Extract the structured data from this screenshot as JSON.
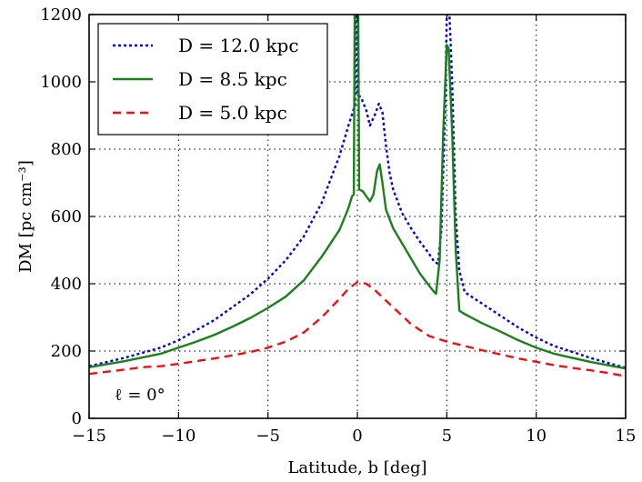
{
  "chart_data": {
    "type": "line",
    "title": "",
    "xlabel": "Latitude, b [deg]",
    "ylabel": "DM [pc cm⁻³]",
    "xlim": [
      -15,
      15
    ],
    "ylim": [
      0,
      1200
    ],
    "xticks": [
      -15,
      -10,
      -5,
      0,
      5,
      10,
      15
    ],
    "yticks": [
      0,
      200,
      400,
      600,
      800,
      1000,
      1200
    ],
    "xtick_labels": [
      "−15",
      "−10",
      "−5",
      "0",
      "5",
      "10",
      "15"
    ],
    "ytick_labels": [
      "0",
      "200",
      "400",
      "600",
      "800",
      "1000",
      "1200"
    ],
    "grid": true,
    "legend_position": "top-left",
    "annotation": "ℓ = 0°",
    "series": [
      {
        "name": "D = 12.0 kpc",
        "color": "#0000dd",
        "style": "dotted",
        "points": [
          [
            -15,
            155
          ],
          [
            -13,
            180
          ],
          [
            -11,
            210
          ],
          [
            -10,
            232
          ],
          [
            -9,
            262
          ],
          [
            -8,
            292
          ],
          [
            -7,
            330
          ],
          [
            -6,
            368
          ],
          [
            -5,
            415
          ],
          [
            -4,
            470
          ],
          [
            -3,
            540
          ],
          [
            -2,
            640
          ],
          [
            -1,
            780
          ],
          [
            -0.5,
            870
          ],
          [
            -0.2,
            920
          ],
          [
            -0.12,
            930
          ],
          [
            -0.1,
            1200
          ],
          [
            -0.02,
            1200
          ],
          [
            0,
            960
          ],
          [
            0.2,
            955
          ],
          [
            0.5,
            915
          ],
          [
            0.7,
            870
          ],
          [
            1.0,
            905
          ],
          [
            1.2,
            935
          ],
          [
            1.4,
            910
          ],
          [
            1.6,
            810
          ],
          [
            1.8,
            730
          ],
          [
            2.0,
            680
          ],
          [
            2.5,
            610
          ],
          [
            3.0,
            565
          ],
          [
            3.5,
            525
          ],
          [
            4.0,
            490
          ],
          [
            4.3,
            465
          ],
          [
            4.5,
            460
          ],
          [
            4.7,
            560
          ],
          [
            4.9,
            900
          ],
          [
            5.0,
            1200
          ],
          [
            5.15,
            1200
          ],
          [
            5.3,
            1000
          ],
          [
            5.5,
            600
          ],
          [
            5.7,
            440
          ],
          [
            6.0,
            375
          ],
          [
            7,
            340
          ],
          [
            8,
            305
          ],
          [
            9,
            270
          ],
          [
            10,
            240
          ],
          [
            11,
            215
          ],
          [
            12,
            198
          ],
          [
            13,
            180
          ],
          [
            14,
            165
          ],
          [
            15,
            150
          ]
        ]
      },
      {
        "name": "D = 8.5 kpc",
        "color": "#1a801a",
        "style": "solid",
        "points": [
          [
            -15,
            152
          ],
          [
            -13,
            170
          ],
          [
            -11,
            192
          ],
          [
            -10,
            210
          ],
          [
            -9,
            228
          ],
          [
            -8,
            248
          ],
          [
            -7,
            272
          ],
          [
            -6,
            298
          ],
          [
            -5,
            328
          ],
          [
            -4,
            362
          ],
          [
            -3,
            410
          ],
          [
            -2,
            480
          ],
          [
            -1,
            560
          ],
          [
            -0.5,
            625
          ],
          [
            -0.3,
            660
          ],
          [
            -0.2,
            665
          ],
          [
            -0.15,
            1200
          ],
          [
            0.05,
            1200
          ],
          [
            0.1,
            680
          ],
          [
            0.3,
            675
          ],
          [
            0.5,
            660
          ],
          [
            0.7,
            645
          ],
          [
            0.9,
            665
          ],
          [
            1.1,
            735
          ],
          [
            1.25,
            755
          ],
          [
            1.4,
            700
          ],
          [
            1.6,
            620
          ],
          [
            2.0,
            565
          ],
          [
            2.5,
            520
          ],
          [
            3.0,
            475
          ],
          [
            3.5,
            430
          ],
          [
            4.0,
            395
          ],
          [
            4.3,
            375
          ],
          [
            4.4,
            370
          ],
          [
            4.6,
            470
          ],
          [
            4.8,
            850
          ],
          [
            5.0,
            1110
          ],
          [
            5.1,
            1100
          ],
          [
            5.3,
            850
          ],
          [
            5.5,
            500
          ],
          [
            5.7,
            320
          ],
          [
            6,
            310
          ],
          [
            7,
            282
          ],
          [
            8,
            258
          ],
          [
            9,
            232
          ],
          [
            10,
            210
          ],
          [
            11,
            192
          ],
          [
            12,
            180
          ],
          [
            13,
            168
          ],
          [
            14,
            158
          ],
          [
            15,
            148
          ]
        ]
      },
      {
        "name": "D = 5.0 kpc",
        "color": "#ee1111",
        "style": "dashed",
        "points": [
          [
            -15,
            132
          ],
          [
            -13,
            145
          ],
          [
            -12,
            152
          ],
          [
            -11,
            155
          ],
          [
            -10,
            162
          ],
          [
            -9,
            170
          ],
          [
            -8,
            178
          ],
          [
            -7,
            187
          ],
          [
            -6,
            197
          ],
          [
            -5,
            210
          ],
          [
            -4,
            228
          ],
          [
            -3,
            255
          ],
          [
            -2,
            300
          ],
          [
            -1,
            355
          ],
          [
            -0.5,
            385
          ],
          [
            0,
            405
          ],
          [
            0.5,
            400
          ],
          [
            1,
            380
          ],
          [
            2,
            330
          ],
          [
            3,
            280
          ],
          [
            4,
            245
          ],
          [
            5,
            228
          ],
          [
            6,
            215
          ],
          [
            7,
            202
          ],
          [
            8,
            190
          ],
          [
            9,
            178
          ],
          [
            10,
            168
          ],
          [
            11,
            158
          ],
          [
            12,
            150
          ],
          [
            13,
            143
          ],
          [
            14,
            135
          ],
          [
            15,
            125
          ]
        ]
      }
    ]
  }
}
